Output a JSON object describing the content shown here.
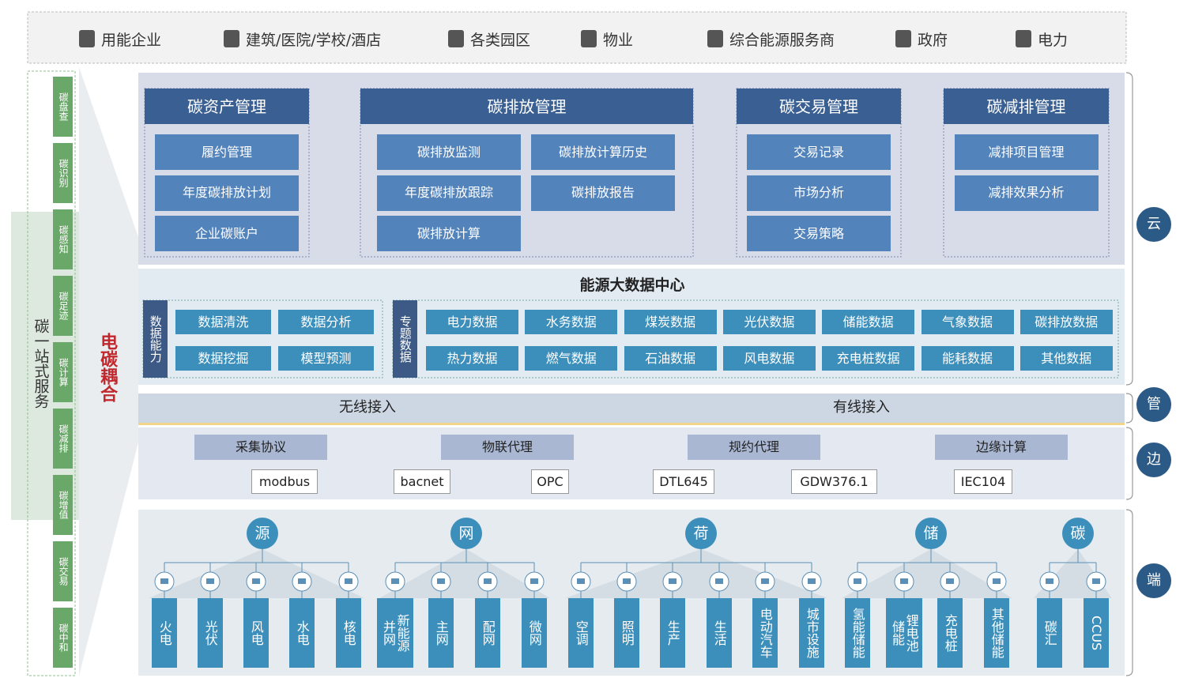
{
  "top_bar": {
    "items": [
      "用能企业",
      "建筑/医院/学校/酒店",
      "各类园区",
      "物业",
      "综合能源服务商",
      "政府",
      "电力"
    ]
  },
  "side": {
    "title": "碳一站式服务",
    "coupling": "电碳耦合",
    "items": [
      "碳盘查",
      "碳识别",
      "碳感知",
      "碳足迹",
      "碳计算",
      "碳减排",
      "碳增值",
      "碳交易",
      "碳中和"
    ]
  },
  "layers": [
    "云",
    "管",
    "边",
    "端"
  ],
  "cloud": {
    "groups": [
      {
        "title": "碳资产管理",
        "items": [
          "履约管理",
          "年度碳排放计划",
          "企业碳账户"
        ]
      },
      {
        "title": "碳排放管理",
        "items": [
          "碳排放监测",
          "碳排放计算历史",
          "年度碳排放跟踪",
          "碳排放报告",
          "碳排放计算"
        ]
      },
      {
        "title": "碳交易管理",
        "items": [
          "交易记录",
          "市场分析",
          "交易策略"
        ]
      },
      {
        "title": "碳减排管理",
        "items": [
          "减排项目管理",
          "减排效果分析"
        ]
      }
    ]
  },
  "data_center": {
    "title": "能源大数据中心",
    "capability": {
      "label": "数据能力",
      "items": [
        "数据清洗",
        "数据分析",
        "数据挖掘",
        "模型预测"
      ]
    },
    "topics": {
      "label": "专题数据",
      "items": [
        "电力数据",
        "水务数据",
        "煤炭数据",
        "光伏数据",
        "储能数据",
        "气象数据",
        "碳排放数据",
        "热力数据",
        "燃气数据",
        "石油数据",
        "风电数据",
        "充电桩数据",
        "能耗数据",
        "其他数据"
      ]
    }
  },
  "pipe": {
    "items": [
      "无线接入",
      "有线接入"
    ]
  },
  "edge": {
    "categories": [
      "采集协议",
      "物联代理",
      "规约代理",
      "边缘计算"
    ],
    "protocols": [
      "modbus",
      "bacnet",
      "OPC",
      "DTL645",
      "GDW376.1",
      "IEC104"
    ]
  },
  "end": {
    "groups": [
      {
        "label": "源",
        "items": [
          "火电",
          "光伏",
          "风电",
          "水电",
          "核电"
        ]
      },
      {
        "label": "网",
        "items": [
          "新能源并网",
          "主网",
          "配网",
          "微网"
        ]
      },
      {
        "label": "荷",
        "items": [
          "空调",
          "照明",
          "生产",
          "生活",
          "电动汽车",
          "城市设施"
        ]
      },
      {
        "label": "储",
        "items": [
          "氢能储能",
          "锂电池储能",
          "充电桩",
          "其他储能"
        ]
      },
      {
        "label": "碳",
        "items": [
          "碳汇",
          "CCUS"
        ]
      }
    ]
  }
}
